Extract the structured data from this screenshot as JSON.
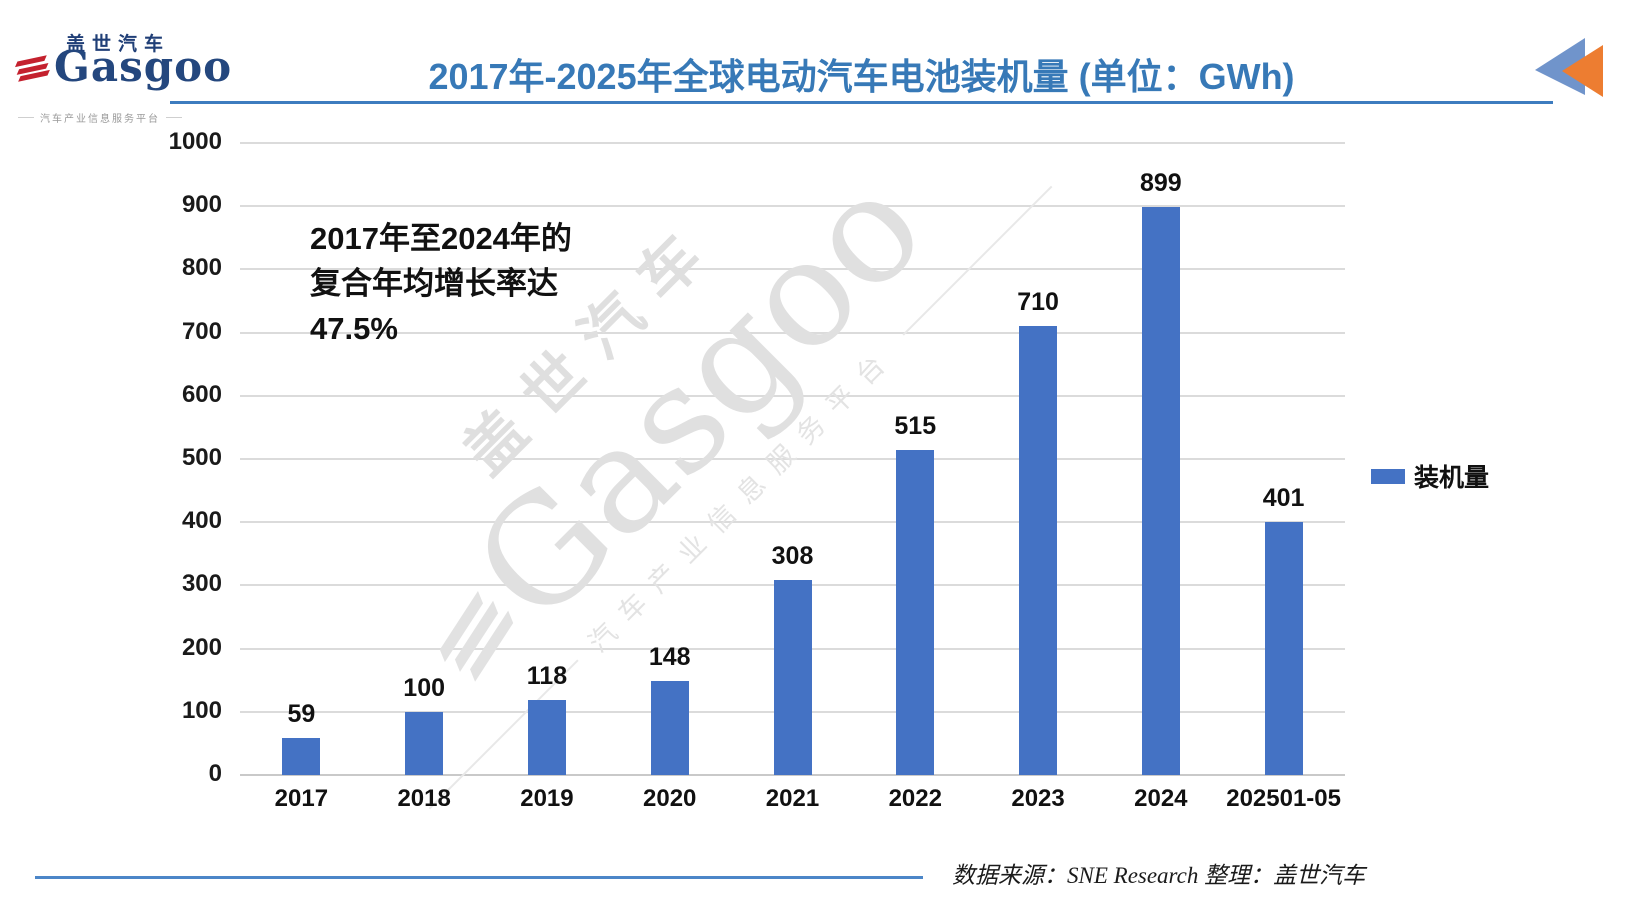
{
  "logo": {
    "cn": "盖世汽车",
    "en": "Gasgoo",
    "tagline": "汽车产业信息服务平台",
    "navy": "#24477E",
    "red": "#C4212E"
  },
  "header": {
    "title": "2017年-2025年全球电动汽车电池装机量 (单位：GWh)",
    "title_color": "#3779B7",
    "underline_color": "#3D7CBF"
  },
  "corner_icon": {
    "name": "double-triangle-icon",
    "blue": "#7094CB",
    "orange": "#ED7D31"
  },
  "annotation": {
    "lines": [
      "2017年至2024年的",
      "复合年均增长率达",
      "47.5%"
    ]
  },
  "legend": {
    "label": "装机量",
    "swatch_color": "#4472C4"
  },
  "watermark": {
    "cn": "盖世汽车",
    "en": "Gasgoo",
    "tagline": "汽车产业信息服务平台"
  },
  "footer": {
    "source": "数据来源：SNE Research 整理：盖世汽车"
  },
  "chart_data": {
    "type": "bar",
    "title": "2017年-2025年全球电动汽车电池装机量 (单位：GWh)",
    "categories": [
      "2017",
      "2018",
      "2019",
      "2020",
      "2021",
      "2022",
      "2023",
      "2024",
      "202501-05"
    ],
    "values": [
      59,
      100,
      118,
      148,
      308,
      515,
      710,
      899,
      401
    ],
    "series_name": "装机量",
    "xlabel": "",
    "ylabel": "",
    "ylim": [
      0,
      1000
    ],
    "ytick_step": 100,
    "bar_color": "#4472C4",
    "grid": true,
    "gridline_color": "#DBDBDB",
    "legend_position": "right"
  }
}
